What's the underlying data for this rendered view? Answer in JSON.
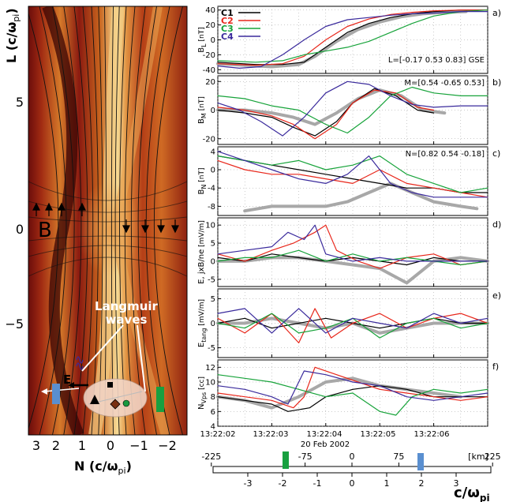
{
  "map": {
    "ylabel": "L (c/ω",
    "ylabel_sub": "pi",
    "ylabel_close": ")",
    "xlabel": "N (c/ω",
    "xlabel_sub": "pi",
    "xlabel_close": ")",
    "yticks": [
      "5",
      "0",
      "−5"
    ],
    "xticks": [
      "3",
      "2",
      "1",
      "0",
      "−1",
      "−2"
    ],
    "b_label": "B",
    "e_label": "E",
    "annotation_line1": "Langmuir",
    "annotation_line2": "waves",
    "colors": {
      "dark": "#6b0d0b",
      "mid": "#c8641e",
      "bright": "#f7dc96"
    }
  },
  "chart_data": [
    {
      "type": "line",
      "panel": "a)",
      "ylabel_main": "B",
      "ylabel_sub": "L",
      "ylabel_unit": "[nT]",
      "ylim": [
        -45,
        45
      ],
      "yticks": [
        "40",
        "20",
        "0",
        "-20",
        "-40"
      ],
      "annotation": "L=[-0.17 0.53 0.83] GSE",
      "legend_placement": "top-left",
      "xlim": [
        0,
        5
      ],
      "series": [
        {
          "name": "C1",
          "color": "#000000",
          "x": [
            0,
            0.7,
            1.2,
            1.6,
            2.0,
            2.4,
            2.8,
            3.2,
            3.6,
            4.0,
            4.5,
            5.0
          ],
          "values": [
            -30,
            -33,
            -33,
            -30,
            -10,
            10,
            22,
            30,
            35,
            38,
            40,
            40
          ]
        },
        {
          "name": "C2",
          "color": "#e8261a",
          "x": [
            0,
            0.7,
            1.2,
            1.6,
            2.0,
            2.4,
            2.8,
            3.2,
            3.6,
            4.0,
            4.5,
            5.0
          ],
          "values": [
            -32,
            -34,
            -32,
            -22,
            0,
            18,
            28,
            34,
            37,
            39,
            40,
            40
          ]
        },
        {
          "name": "C3",
          "color": "#17a33a",
          "x": [
            0,
            0.7,
            1.2,
            1.6,
            2.0,
            2.4,
            2.8,
            3.2,
            3.6,
            4.0,
            4.5,
            5.0
          ],
          "values": [
            -28,
            -30,
            -28,
            -20,
            -15,
            -10,
            -2,
            10,
            22,
            32,
            38,
            40
          ]
        },
        {
          "name": "C4",
          "color": "#3a2a9c",
          "x": [
            0,
            0.4,
            0.8,
            1.2,
            1.6,
            2.0,
            2.4,
            2.8,
            3.2,
            3.6,
            4.0,
            4.5,
            5.0
          ],
          "values": [
            -35,
            -38,
            -36,
            -20,
            0,
            18,
            27,
            30,
            33,
            35,
            36,
            38,
            38
          ]
        },
        {
          "name": "",
          "color": "#a8a8a8",
          "x": [
            0,
            0.5,
            1.0,
            1.5,
            1.8,
            2.2,
            2.6,
            3.0,
            3.4,
            3.8,
            4.2,
            4.6
          ],
          "values": [
            -32,
            -34,
            -36,
            -33,
            -22,
            -2,
            14,
            24,
            31,
            35,
            37,
            38
          ]
        }
      ]
    },
    {
      "type": "line",
      "panel": "b)",
      "ylabel_main": "B",
      "ylabel_sub": "M",
      "ylabel_unit": "[nT]",
      "ylim": [
        -24,
        24
      ],
      "yticks": [
        "20",
        "0",
        "-20"
      ],
      "annotation": "M=[0.54 -0.65 0.53]",
      "xlim": [
        0,
        5
      ],
      "series": [
        {
          "name": "C1",
          "color": "#000000",
          "x": [
            0,
            0.5,
            1.0,
            1.4,
            1.8,
            2.2,
            2.5,
            2.9,
            3.3,
            3.7,
            4.0
          ],
          "values": [
            0,
            -2,
            -5,
            -12,
            -18,
            -8,
            5,
            15,
            10,
            0,
            -2
          ]
        },
        {
          "name": "C2",
          "color": "#e8261a",
          "x": [
            0,
            0.5,
            1.0,
            1.4,
            1.8,
            2.2,
            2.5,
            2.9,
            3.3,
            3.7,
            4.0
          ],
          "values": [
            2,
            0,
            -4,
            -10,
            -20,
            -10,
            5,
            14,
            12,
            2,
            0
          ]
        },
        {
          "name": "C3",
          "color": "#17a33a",
          "x": [
            0,
            0.5,
            1.0,
            1.5,
            2.0,
            2.4,
            2.8,
            3.2,
            3.6,
            4.0,
            4.5,
            5.0
          ],
          "values": [
            10,
            8,
            3,
            0,
            -10,
            -16,
            -5,
            10,
            16,
            12,
            10,
            10
          ]
        },
        {
          "name": "C4",
          "color": "#3a2a9c",
          "x": [
            0,
            0.4,
            0.8,
            1.2,
            1.6,
            2.0,
            2.4,
            2.8,
            3.2,
            3.6,
            4.0,
            4.5,
            5.0
          ],
          "values": [
            5,
            0,
            -8,
            -18,
            -5,
            12,
            20,
            18,
            10,
            4,
            2,
            3,
            3
          ]
        },
        {
          "name": "",
          "color": "#a8a8a8",
          "x": [
            0,
            0.5,
            1.0,
            1.4,
            1.8,
            2.2,
            2.6,
            3.0,
            3.4,
            3.8,
            4.2
          ],
          "values": [
            0,
            0,
            -2,
            -5,
            -10,
            -2,
            8,
            14,
            10,
            0,
            -2
          ]
        }
      ]
    },
    {
      "type": "line",
      "panel": "c)",
      "ylabel_main": "B",
      "ylabel_sub": "N",
      "ylabel_unit": "[nT]",
      "ylim": [
        -10,
        5
      ],
      "yticks": [
        "4",
        "0",
        "-4",
        "-8"
      ],
      "annotation": "N=[0.82 0.54 -0.18]",
      "xlim": [
        0,
        5
      ],
      "series": [
        {
          "name": "C1",
          "color": "#000000",
          "x": [
            0,
            0.5,
            1.0,
            1.5,
            2.0,
            2.5,
            3.0,
            3.5,
            4.0,
            4.5,
            5.0
          ],
          "values": [
            3,
            2,
            1,
            0,
            -1,
            -2,
            -3,
            -4,
            -4,
            -5,
            -5
          ]
        },
        {
          "name": "C2",
          "color": "#e8261a",
          "x": [
            0,
            0.5,
            1.0,
            1.5,
            2.0,
            2.5,
            3.0,
            3.5,
            4.0,
            4.5,
            5.0
          ],
          "values": [
            2,
            0,
            -1,
            -1,
            -2,
            -3,
            0,
            -3,
            -4,
            -5,
            -6
          ]
        },
        {
          "name": "C3",
          "color": "#17a33a",
          "x": [
            0,
            0.5,
            1.0,
            1.5,
            2.0,
            2.5,
            3.0,
            3.5,
            4.0,
            4.5,
            5.0
          ],
          "values": [
            3,
            2,
            1,
            2,
            0,
            1,
            3,
            -1,
            -3,
            -5,
            -4
          ]
        },
        {
          "name": "C4",
          "color": "#3a2a9c",
          "x": [
            0,
            0.5,
            1.0,
            1.5,
            2.0,
            2.4,
            2.8,
            3.2,
            3.6,
            4.0,
            4.5,
            5.0
          ],
          "values": [
            4,
            2,
            0,
            -2,
            -3,
            -1,
            3,
            -3,
            -5,
            -6,
            -6,
            -6
          ]
        },
        {
          "name": "",
          "color": "#a8a8a8",
          "x": [
            0.5,
            1.0,
            1.5,
            2.0,
            2.4,
            2.8,
            3.2,
            3.6,
            4.0,
            4.5,
            4.8
          ],
          "values": [
            -9,
            -8,
            -8,
            -8,
            -7,
            -5,
            -3,
            -5,
            -7,
            -8,
            -8.5
          ]
        }
      ]
    },
    {
      "type": "line",
      "panel": "d)",
      "ylabel_main": "E, jxB/ne",
      "ylabel_sub": "",
      "ylabel_unit": "[mV/m]",
      "ylim": [
        -7,
        12
      ],
      "yticks": [
        "10",
        "5",
        "0",
        "-5"
      ],
      "annotation": "",
      "xlim": [
        0,
        5
      ],
      "series": [
        {
          "name": "C1",
          "color": "#000000",
          "x": [
            0,
            0.5,
            1.0,
            1.5,
            2.0,
            2.5,
            3.0,
            3.5,
            4.0,
            4.5,
            5.0
          ],
          "values": [
            1,
            0,
            2,
            1,
            0,
            1,
            0,
            -1,
            1,
            0,
            0
          ]
        },
        {
          "name": "C2",
          "color": "#e8261a",
          "x": [
            0,
            0.5,
            1.0,
            1.4,
            1.8,
            2.0,
            2.2,
            2.6,
            3.0,
            3.5,
            4.0,
            4.5,
            5.0
          ],
          "values": [
            2,
            0,
            3,
            5,
            8,
            10,
            3,
            0,
            -2,
            1,
            2,
            -1,
            0
          ]
        },
        {
          "name": "C3",
          "color": "#17a33a",
          "x": [
            0,
            0.5,
            1.0,
            1.5,
            2.0,
            2.5,
            3.0,
            3.5,
            4.0,
            4.5,
            5.0
          ],
          "values": [
            0,
            1,
            1,
            3,
            0,
            2,
            0,
            1,
            0,
            -1,
            0
          ]
        },
        {
          "name": "C4",
          "color": "#3a2a9c",
          "x": [
            0,
            0.5,
            1.0,
            1.3,
            1.6,
            1.8,
            2.0,
            2.5,
            3.0,
            3.5,
            4.0,
            4.5,
            5.0
          ],
          "values": [
            2,
            3,
            4,
            8,
            6,
            10,
            2,
            0,
            1,
            0,
            0,
            0,
            0
          ]
        },
        {
          "name": "",
          "color": "#a8a8a8",
          "x": [
            0,
            0.5,
            1.0,
            1.5,
            2.0,
            2.5,
            3.0,
            3.5,
            4.0,
            4.5,
            5.0
          ],
          "values": [
            0,
            0,
            1,
            1,
            0,
            -1,
            -2,
            -6,
            0,
            1,
            0
          ]
        }
      ]
    },
    {
      "type": "line",
      "panel": "e)",
      "ylabel_main": "E",
      "ylabel_sub": "tang",
      "ylabel_unit": "[mV/m]",
      "ylim": [
        -7,
        7
      ],
      "yticks": [
        "5",
        "0",
        "-5"
      ],
      "annotation": "",
      "xlim": [
        0,
        5
      ],
      "series": [
        {
          "name": "C1",
          "color": "#000000",
          "x": [
            0,
            0.5,
            1.0,
            1.5,
            2.0,
            2.5,
            3.0,
            3.5,
            4.0,
            4.5,
            5.0
          ],
          "values": [
            0,
            1,
            -1,
            0,
            1,
            0,
            -1,
            0,
            1,
            0,
            0
          ]
        },
        {
          "name": "C2",
          "color": "#e8261a",
          "x": [
            0,
            0.5,
            1.0,
            1.5,
            1.8,
            2.1,
            2.5,
            3.0,
            3.5,
            4.0,
            4.5,
            5.0
          ],
          "values": [
            1,
            -2,
            2,
            -4,
            3,
            -3,
            0,
            2,
            -1,
            1,
            2,
            0
          ]
        },
        {
          "name": "C3",
          "color": "#17a33a",
          "x": [
            0,
            0.5,
            1.0,
            1.5,
            2.0,
            2.5,
            3.0,
            3.5,
            4.0,
            4.5,
            5.0
          ],
          "values": [
            0,
            -1,
            2,
            -2,
            -1,
            1,
            -3,
            0,
            1,
            -1,
            0
          ]
        },
        {
          "name": "C4",
          "color": "#3a2a9c",
          "x": [
            0,
            0.5,
            1.0,
            1.5,
            2.0,
            2.5,
            3.0,
            3.5,
            4.0,
            4.5,
            5.0
          ],
          "values": [
            2,
            3,
            -2,
            3,
            -2,
            1,
            0,
            -1,
            2,
            0,
            1
          ]
        },
        {
          "name": "",
          "color": "#a8a8a8",
          "x": [
            0,
            0.5,
            1.0,
            1.5,
            2.0,
            2.5,
            3.0,
            3.5,
            4.0,
            4.5,
            5.0
          ],
          "values": [
            0,
            0,
            1,
            0,
            -1,
            0,
            -2,
            -1,
            0,
            0,
            0
          ]
        }
      ]
    },
    {
      "type": "line",
      "panel": "f)",
      "ylabel_main": "N",
      "ylabel_sub": "Vps",
      "ylabel_unit": "[cc]",
      "ylim": [
        4,
        13
      ],
      "yticks": [
        "12",
        "10",
        "8",
        "6",
        "4"
      ],
      "annotation": "",
      "xlim": [
        0,
        5
      ],
      "series": [
        {
          "name": "C1",
          "color": "#000000",
          "x": [
            0,
            0.5,
            1.0,
            1.3,
            1.7,
            2.0,
            2.5,
            3.0,
            3.5,
            4.0,
            4.5,
            5.0
          ],
          "values": [
            8,
            7.5,
            7,
            6,
            6.5,
            8,
            9,
            9.5,
            9,
            8,
            8,
            8
          ]
        },
        {
          "name": "C2",
          "color": "#e8261a",
          "x": [
            0,
            0.5,
            1.0,
            1.4,
            1.6,
            1.8,
            2.2,
            2.6,
            3.0,
            3.5,
            4.0,
            4.5,
            5.0
          ],
          "values": [
            8.5,
            8,
            7.5,
            6.5,
            8,
            12,
            11,
            10,
            9,
            8.5,
            8,
            7.5,
            8
          ]
        },
        {
          "name": "C3",
          "color": "#17a33a",
          "x": [
            0,
            0.5,
            1.0,
            1.5,
            2.0,
            2.5,
            3.0,
            3.3,
            3.6,
            4.0,
            4.5,
            5.0
          ],
          "values": [
            11,
            10.5,
            10,
            9,
            8,
            8.5,
            6,
            5.5,
            8,
            9,
            8.5,
            9
          ]
        },
        {
          "name": "C4",
          "color": "#3a2a9c",
          "x": [
            0,
            0.5,
            1.0,
            1.3,
            1.6,
            2.0,
            2.5,
            3.0,
            3.5,
            4.0,
            4.5,
            5.0
          ],
          "values": [
            9.5,
            9,
            8,
            7,
            11.5,
            11,
            10,
            9.5,
            8,
            7.5,
            8,
            8.5
          ]
        },
        {
          "name": "",
          "color": "#a8a8a8",
          "x": [
            0,
            0.5,
            1.0,
            1.5,
            2.0,
            2.5,
            3.0,
            3.5,
            4.0,
            4.5
          ],
          "values": [
            8,
            7.5,
            6.5,
            8,
            10,
            10.5,
            9.5,
            9,
            8.5,
            8
          ]
        }
      ]
    }
  ],
  "time_axis": {
    "ticks": [
      "13:22:02",
      "13:22:03",
      "13:22:04",
      "13:22:05",
      "13:22:06"
    ],
    "date": "20 Feb 2002"
  },
  "km_axis": {
    "unit": "[km]",
    "ticks": [
      "-225",
      "-75",
      "0",
      "75",
      "225"
    ],
    "values": [
      -225,
      -75,
      0,
      75,
      225
    ]
  },
  "norm_axis": {
    "ticks": [
      "-3",
      "-2",
      "-1",
      "0",
      "1",
      "2",
      "3"
    ],
    "values": [
      -3,
      -2,
      -1,
      0,
      1,
      2,
      3
    ],
    "label": "c/ω",
    "label_sub": "pi"
  }
}
